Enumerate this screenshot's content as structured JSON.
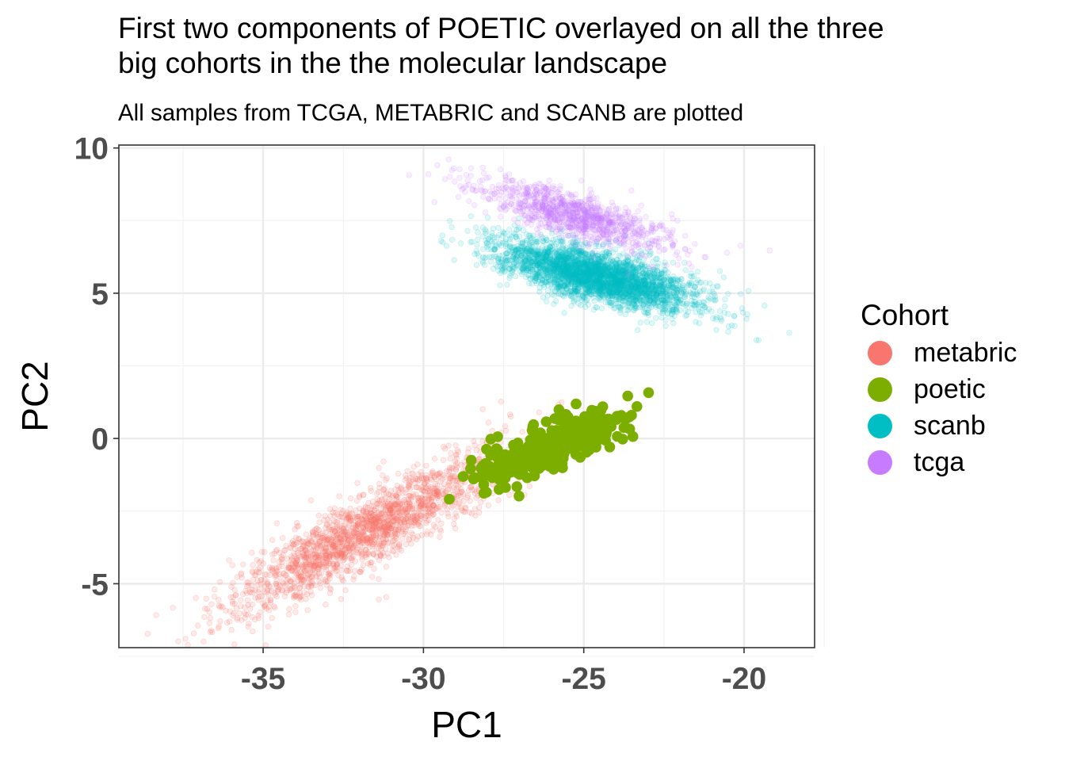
{
  "chart_data": {
    "type": "scatter",
    "title": "First two components of POETIC overlayed on all the three big cohorts in the the molecular landscape",
    "title_lines": [
      "First two components of POETIC overlayed on all the three",
      "big cohorts in the the molecular landscape"
    ],
    "subtitle": "All samples from TCGA, METABRIC and SCANB are plotted",
    "xlabel": "PC1",
    "ylabel": "PC2",
    "xlim": [
      -39.5,
      -17.8
    ],
    "ylim": [
      -7.2,
      10.1
    ],
    "xticks": [
      -35,
      -30,
      -25,
      -20
    ],
    "xtick_labels": [
      "-35",
      "-30",
      "-25",
      "-20"
    ],
    "yticks": [
      -5,
      0,
      5,
      10
    ],
    "ytick_labels": [
      "-5",
      "0",
      "5",
      "10"
    ],
    "grid": true,
    "legend_title": "Cohort",
    "legend_position": "right",
    "series": [
      {
        "name": "metabric",
        "color": "#F8766D",
        "opacity": 0.15,
        "radius": 3.3,
        "n_points": 1900,
        "center": [
          -31.8,
          -3.2
        ],
        "sd_major": 2.4,
        "sd_minor": 0.55,
        "slope": 0.63
      },
      {
        "name": "poetic",
        "color": "#7CAE00",
        "opacity": 1.0,
        "radius": 6.8,
        "n_points": 380,
        "center": [
          -26.2,
          -0.35
        ],
        "sd_major": 1.25,
        "sd_minor": 0.34,
        "slope": 0.46
      },
      {
        "name": "scanb",
        "color": "#00BFC4",
        "opacity": 0.12,
        "radius": 3.3,
        "n_points": 3200,
        "center": [
          -24.6,
          5.6
        ],
        "sd_major": 1.6,
        "sd_minor": 0.42,
        "slope": -0.28
      },
      {
        "name": "tcga",
        "color": "#C77CFF",
        "opacity": 0.13,
        "radius": 3.3,
        "n_points": 1050,
        "center": [
          -25.3,
          7.7
        ],
        "sd_major": 1.6,
        "sd_minor": 0.38,
        "slope": -0.34
      }
    ]
  }
}
